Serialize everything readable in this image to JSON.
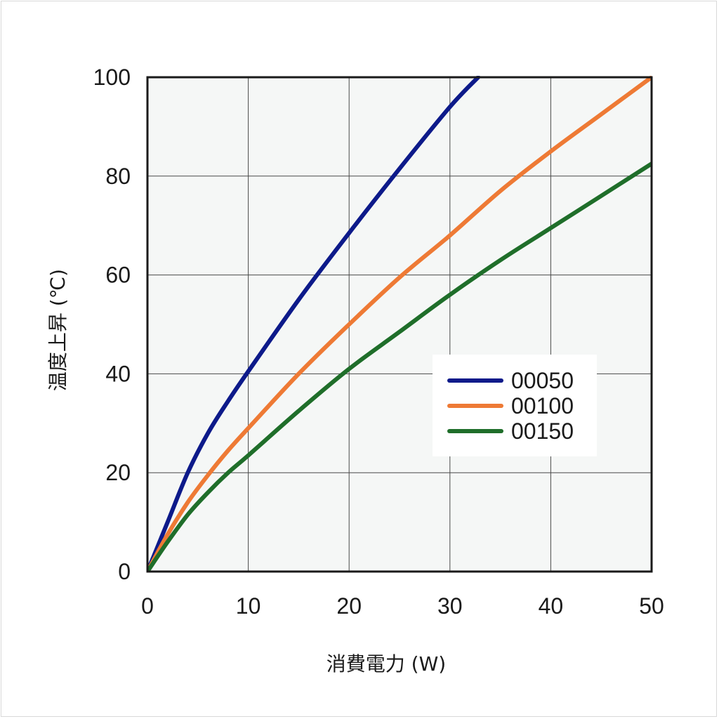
{
  "chart_data": {
    "type": "line",
    "xlabel": "消費電力 (W)",
    "ylabel": "温度上昇 (℃)",
    "xlim": [
      0,
      50
    ],
    "ylim": [
      0,
      100
    ],
    "xticks": [
      0,
      10,
      20,
      30,
      40,
      50
    ],
    "yticks": [
      0,
      20,
      40,
      60,
      80,
      100
    ],
    "grid": true,
    "legend_position": "center-right",
    "background": "#f5f7f6",
    "series": [
      {
        "name": "00050",
        "color": "#0d1a8a",
        "x": [
          0,
          2,
          4,
          6,
          8,
          10,
          15,
          20,
          25,
          30,
          32.8
        ],
        "y": [
          0,
          10,
          20,
          28,
          34.5,
          40.5,
          55,
          68.5,
          81.5,
          94,
          100
        ]
      },
      {
        "name": "00100",
        "color": "#ee7a35",
        "x": [
          0,
          2,
          4,
          6,
          8,
          10,
          15,
          20,
          25,
          30,
          35,
          40,
          45,
          50
        ],
        "y": [
          0,
          7.5,
          14,
          19.5,
          24.5,
          29,
          40,
          50,
          59.5,
          68,
          77,
          85,
          92.5,
          100
        ]
      },
      {
        "name": "00150",
        "color": "#1f6e2a",
        "x": [
          0,
          2,
          4,
          6,
          8,
          10,
          15,
          20,
          25,
          30,
          35,
          40,
          45,
          50
        ],
        "y": [
          0,
          6,
          11.5,
          16,
          20,
          23.5,
          32.5,
          41,
          48.5,
          56,
          63,
          69.5,
          76,
          82.5
        ]
      }
    ]
  }
}
